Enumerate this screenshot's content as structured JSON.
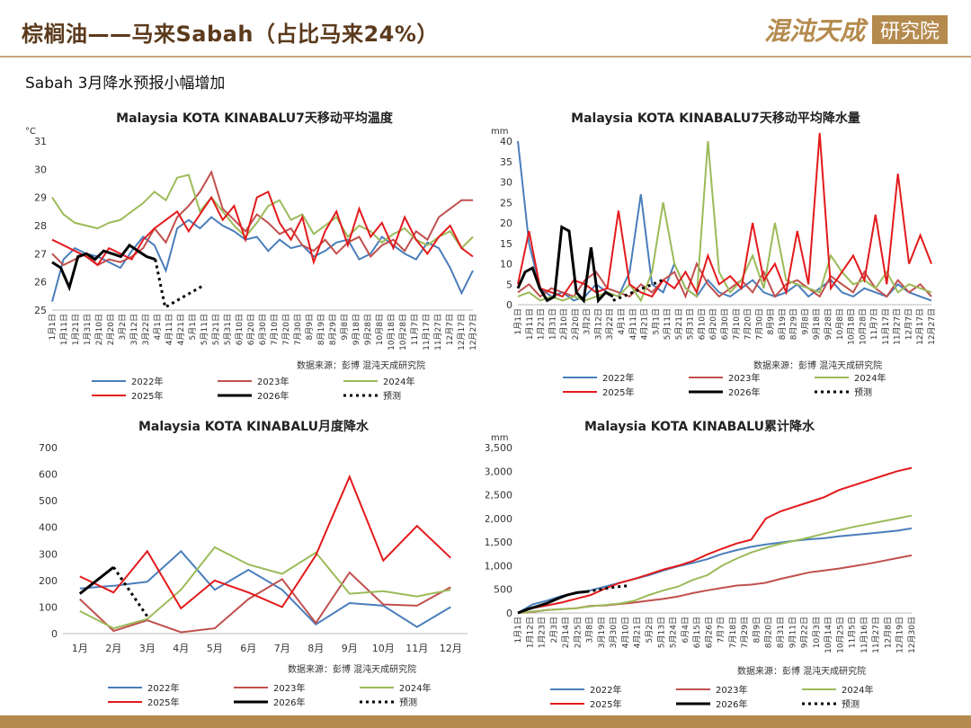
{
  "header": {
    "title": "棕榈油——马来Sabah（占比马来24%）",
    "logo_text": "混沌天成",
    "logo_box_text": "研究院"
  },
  "subtitle": "Sabah 3月降水预报小幅增加",
  "colors": {
    "y2022": "#4a7ebb",
    "y2023": "#c0504d",
    "y2024": "#9bbb59",
    "y2025": "#e31a1c",
    "y2026": "#000000",
    "forecast": "#000000",
    "brand": "#5b3a1c",
    "gold": "#b48a4e"
  },
  "legend": {
    "y2022": "2022年",
    "y2023": "2023年",
    "y2024": "2024年",
    "y2025": "2025年",
    "y2026": "2026年",
    "forecast": "预测"
  },
  "source_note": "数据来源：彭博  混沌天成研究院",
  "chart_data": [
    {
      "id": "temp",
      "type": "line",
      "title": "Malaysia KOTA KINABALU7天移动平均温度",
      "unit": "°C",
      "ylim": [
        25,
        31
      ],
      "yticks": [
        25,
        26,
        27,
        28,
        29,
        30,
        31
      ],
      "x_labels": [
        "1月1日",
        "1月11日",
        "1月21日",
        "1月31日",
        "2月10日",
        "2月20日",
        "3月2日",
        "3月12日",
        "3月22日",
        "4月1日",
        "4月11日",
        "4月21日",
        "5月1日",
        "5月11日",
        "5月21日",
        "5月31日",
        "6月10日",
        "6月20日",
        "6月30日",
        "7月10日",
        "7月20日",
        "7月30日",
        "8月9日",
        "8月19日",
        "8月29日",
        "9月8日",
        "9月18日",
        "9月28日",
        "10月8日",
        "10月18日",
        "10月28日",
        "11月7日",
        "11月17日",
        "11月27日",
        "12月7日",
        "12月17日",
        "12月27日"
      ],
      "series": [
        {
          "key": "y2022",
          "name": "2022年",
          "values": [
            25.3,
            26.8,
            27.2,
            27.0,
            26.9,
            26.7,
            26.5,
            27.1,
            27.6,
            27.3,
            26.4,
            27.9,
            28.2,
            27.9,
            28.3,
            28.0,
            27.8,
            27.5,
            27.6,
            27.1,
            27.5,
            27.2,
            27.3,
            26.9,
            27.1,
            27.4,
            27.5,
            26.8,
            27.0,
            27.6,
            27.3,
            27.0,
            26.8,
            27.4,
            27.2,
            26.5,
            25.6,
            26.4
          ]
        },
        {
          "key": "y2023",
          "name": "2023年",
          "values": [
            27.0,
            26.6,
            26.8,
            27.0,
            26.6,
            26.8,
            26.7,
            26.9,
            27.2,
            27.9,
            27.4,
            28.3,
            28.7,
            29.2,
            29.9,
            28.6,
            28.2,
            27.8,
            28.4,
            28.1,
            27.7,
            27.9,
            27.3,
            27.1,
            27.5,
            27.0,
            27.4,
            27.6,
            26.9,
            27.3,
            27.5,
            27.1,
            27.8,
            27.5,
            28.3,
            28.6,
            28.9,
            28.9
          ]
        },
        {
          "key": "y2024",
          "name": "2024年",
          "values": [
            29.0,
            28.4,
            28.1,
            28.0,
            27.9,
            28.1,
            28.2,
            28.5,
            28.8,
            29.2,
            28.9,
            29.7,
            29.8,
            28.5,
            29.0,
            28.5,
            28.0,
            27.6,
            28.1,
            28.7,
            28.9,
            28.2,
            28.4,
            27.7,
            28.0,
            28.3,
            27.6,
            28.0,
            27.8,
            27.4,
            27.7,
            27.9,
            27.5,
            27.3,
            27.6,
            27.8,
            27.2,
            27.6
          ]
        },
        {
          "key": "y2025",
          "name": "2025年",
          "values": [
            27.5,
            27.3,
            27.1,
            26.9,
            26.6,
            27.2,
            27.0,
            26.8,
            27.5,
            27.9,
            28.2,
            28.5,
            27.8,
            28.4,
            29.0,
            28.2,
            28.7,
            27.5,
            29.0,
            29.2,
            28.1,
            27.5,
            28.3,
            26.7,
            27.8,
            28.5,
            27.3,
            28.6,
            27.6,
            28.1,
            27.2,
            28.3,
            27.5,
            27.0,
            27.6,
            28.0,
            27.2,
            26.9
          ]
        }
      ],
      "y2026": [
        26.7,
        26.5,
        25.8,
        26.9,
        27.0,
        26.8,
        27.1,
        27.0,
        26.9,
        27.3,
        27.1,
        26.9,
        26.8
      ],
      "forecast": [
        26.8,
        25.1,
        25.3,
        25.5,
        25.7,
        25.9
      ]
    },
    {
      "id": "rain7",
      "type": "line",
      "title": "Malaysia KOTA KINABALU7天移动平均降水量",
      "unit": "mm",
      "ylim": [
        0,
        40
      ],
      "yticks": [
        0,
        5,
        10,
        15,
        20,
        25,
        30,
        35,
        40
      ],
      "x_labels": [
        "1月1日",
        "1月11日",
        "1月21日",
        "1月31日",
        "2月10日",
        "2月20日",
        "3月2日",
        "3月12日",
        "3月22日",
        "4月1日",
        "4月11日",
        "4月21日",
        "5月1日",
        "5月11日",
        "5月21日",
        "5月31日",
        "6月10日",
        "6月20日",
        "6月30日",
        "7月10日",
        "7月20日",
        "7月30日",
        "8月9日",
        "8月19日",
        "8月29日",
        "9月8日",
        "9月18日",
        "9月28日",
        "10月8日",
        "10月18日",
        "10月28日",
        "11月7日",
        "11月17日",
        "11月27日",
        "12月7日",
        "12月17日",
        "12月27日"
      ],
      "series": [
        {
          "key": "y2022",
          "name": "2022年",
          "values": [
            40,
            15,
            4,
            2,
            3,
            1,
            2,
            5,
            3,
            2,
            8,
            27,
            5,
            3,
            10,
            4,
            2,
            6,
            3,
            2,
            4,
            6,
            3,
            2,
            3,
            5,
            2,
            4,
            6,
            3,
            2,
            4,
            3,
            2,
            5,
            3,
            2,
            1
          ]
        },
        {
          "key": "y2023",
          "name": "2023年",
          "values": [
            3,
            5,
            2,
            4,
            3,
            2,
            6,
            8,
            4,
            3,
            2,
            5,
            3,
            6,
            8,
            2,
            10,
            5,
            2,
            4,
            6,
            3,
            8,
            2,
            5,
            6,
            4,
            2,
            7,
            5,
            3,
            8,
            4,
            2,
            6,
            3,
            5,
            2
          ]
        },
        {
          "key": "y2024",
          "name": "2024年",
          "values": [
            2,
            3,
            1,
            2,
            1,
            2,
            1,
            2,
            3,
            2,
            5,
            1,
            8,
            25,
            10,
            4,
            2,
            40,
            8,
            3,
            6,
            12,
            4,
            20,
            6,
            5,
            4,
            3,
            12,
            8,
            5,
            6,
            4,
            8,
            3,
            5,
            4,
            3
          ]
        },
        {
          "key": "y2025",
          "name": "2025年",
          "values": [
            5,
            18,
            4,
            3,
            2,
            6,
            5,
            3,
            4,
            23,
            5,
            3,
            2,
            6,
            4,
            8,
            3,
            12,
            5,
            7,
            4,
            20,
            6,
            10,
            3,
            18,
            5,
            42,
            4,
            8,
            12,
            6,
            22,
            5,
            32,
            10,
            17,
            10
          ]
        }
      ],
      "y2026": [
        4,
        8,
        9,
        4,
        1,
        2,
        19,
        18,
        3,
        1,
        14,
        1,
        3,
        2
      ],
      "forecast": [
        1,
        2,
        3,
        4,
        5,
        6
      ]
    },
    {
      "id": "monthly",
      "type": "line",
      "title": "Malaysia KOTA KINABALU月度降水",
      "unit": "",
      "ylim": [
        0,
        700
      ],
      "yticks": [
        0,
        100,
        200,
        300,
        400,
        500,
        600,
        700
      ],
      "categories": [
        "1月",
        "2月",
        "3月",
        "4月",
        "5月",
        "6月",
        "7月",
        "8月",
        "9月",
        "10月",
        "11月",
        "12月"
      ],
      "series": [
        {
          "key": "y2022",
          "name": "2022年",
          "values": [
            170,
            180,
            195,
            310,
            165,
            240,
            165,
            35,
            115,
            105,
            25,
            100
          ]
        },
        {
          "key": "y2023",
          "name": "2023年",
          "values": [
            130,
            10,
            50,
            5,
            20,
            130,
            205,
            40,
            230,
            110,
            105,
            175
          ]
        },
        {
          "key": "y2024",
          "name": "2024年",
          "values": [
            85,
            20,
            55,
            165,
            325,
            260,
            225,
            305,
            150,
            160,
            140,
            165
          ]
        },
        {
          "key": "y2025",
          "name": "2025年",
          "values": [
            215,
            155,
            310,
            95,
            200,
            155,
            100,
            295,
            590,
            275,
            405,
            285
          ]
        }
      ],
      "y2026": [
        150,
        250
      ],
      "forecast": [
        250,
        65
      ]
    },
    {
      "id": "cumulative",
      "type": "line",
      "title": "Malaysia KOTA KINABALU累计降水",
      "unit": "mm",
      "ylim": [
        0,
        3500
      ],
      "yticks": [
        0,
        500,
        1000,
        1500,
        2000,
        2500,
        3000,
        3500
      ],
      "ytick_labels": [
        "0",
        "500",
        "1,000",
        "1,500",
        "2,000",
        "2,500",
        "3,000",
        "3,500"
      ],
      "x_labels": [
        "1月1日",
        "1月12日",
        "1月23日",
        "2月3日",
        "2月14日",
        "2月25日",
        "3月8日",
        "3月19日",
        "3月30日",
        "4月10日",
        "4月21日",
        "5月2日",
        "5月13日",
        "5月24日",
        "6月4日",
        "6月15日",
        "6月26日",
        "7月7日",
        "7月18日",
        "7月29日",
        "8月9日",
        "8月20日",
        "8月31日",
        "9月11日",
        "9月22日",
        "10月3日",
        "10月14日",
        "10月25日",
        "11月5日",
        "11月16日",
        "11月27日",
        "12月8日",
        "12月19日",
        "12月30日"
      ],
      "series": [
        {
          "key": "y2022",
          "name": "2022年",
          "values": [
            0,
            180,
            260,
            360,
            420,
            480,
            560,
            640,
            720,
            800,
            900,
            990,
            1060,
            1140,
            1250,
            1330,
            1400,
            1450,
            1490,
            1530,
            1560,
            1580,
            1620,
            1650,
            1680,
            1710,
            1740,
            1790
          ]
        },
        {
          "key": "y2023",
          "name": "2023年",
          "values": [
            0,
            20,
            60,
            80,
            100,
            150,
            160,
            190,
            220,
            260,
            300,
            350,
            420,
            480,
            530,
            580,
            600,
            640,
            720,
            790,
            860,
            900,
            940,
            990,
            1040,
            1100,
            1160,
            1220
          ]
        },
        {
          "key": "y2024",
          "name": "2024年",
          "values": [
            0,
            30,
            60,
            80,
            100,
            140,
            170,
            200,
            260,
            380,
            480,
            560,
            700,
            800,
            1000,
            1150,
            1280,
            1380,
            1460,
            1530,
            1600,
            1680,
            1750,
            1820,
            1880,
            1940,
            2000,
            2060
          ]
        },
        {
          "key": "y2025",
          "name": "2025年",
          "values": [
            0,
            100,
            160,
            220,
            300,
            380,
            520,
            640,
            720,
            820,
            920,
            1000,
            1100,
            1240,
            1360,
            1470,
            1550,
            2000,
            2150,
            2250,
            2350,
            2450,
            2600,
            2700,
            2800,
            2900,
            3000,
            3070
          ]
        }
      ],
      "y2026": [
        0,
        80,
        140,
        210,
        300,
        380,
        430,
        450
      ],
      "forecast": [
        450,
        500,
        550,
        580
      ]
    }
  ]
}
